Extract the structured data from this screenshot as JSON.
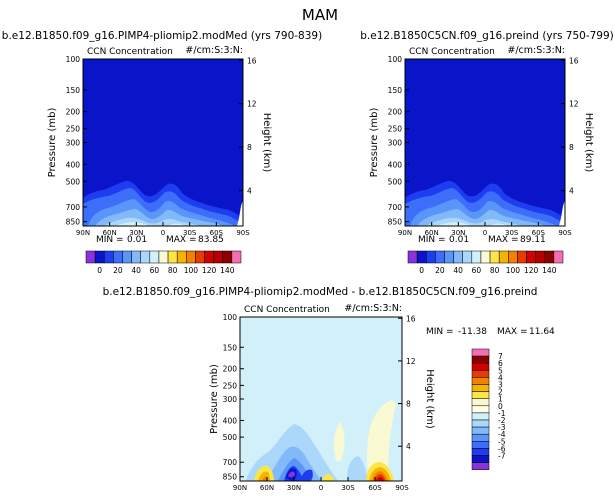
{
  "figure": {
    "title": "MAM"
  },
  "palette": {
    "background": "#ffffff",
    "frame": "#000000",
    "deep_blue": "#0a14c8"
  },
  "chart_data": [
    {
      "type": "heatmap",
      "panel": "left",
      "title": "b.e12.B1850.f09_g16.PIMP4-pliomip2.modMed (yrs 790-839)",
      "subtitle_left": "CCN Concentration",
      "subtitle_right": "#/cm:S:3:N:",
      "ylabel": "Pressure (mb)",
      "ylabel_right": "Height (km)",
      "x_ticks": [
        "90N",
        "60N",
        "30N",
        "0",
        "30S",
        "60S",
        "90S"
      ],
      "y_ticks": [
        "100",
        "150",
        "200",
        "250",
        "300",
        "400",
        "500",
        "700",
        "850"
      ],
      "y2_ticks": [
        "16",
        "12",
        "8",
        "4"
      ],
      "min_label": "MIN =",
      "min_value": "0.01",
      "max_label": "MAX =",
      "max_value": "83.85"
    },
    {
      "type": "heatmap",
      "panel": "right",
      "title": "b.e12.B1850C5CN.f09_g16.preind (yrs 750-799)",
      "subtitle_left": "CCN Concentration",
      "subtitle_right": "#/cm:S:3:N:",
      "ylabel": "Pressure (mb)",
      "ylabel_right": "Height (km)",
      "x_ticks": [
        "90N",
        "60N",
        "30N",
        "0",
        "30S",
        "60S",
        "90S"
      ],
      "y_ticks": [
        "100",
        "150",
        "200",
        "250",
        "300",
        "400",
        "500",
        "700",
        "850"
      ],
      "y2_ticks": [
        "16",
        "12",
        "8",
        "4"
      ],
      "min_label": "MIN =",
      "min_value": "0.01",
      "max_label": "MAX =",
      "max_value": "89.11"
    },
    {
      "type": "heatmap",
      "panel": "difference",
      "title": "b.e12.B1850.f09_g16.PIMP4-pliomip2.modMed - b.e12.B1850C5CN.f09_g16.preind",
      "subtitle_left": "CCN Concentration",
      "subtitle_right": "#/cm:S:3:N:",
      "ylabel": "Pressure (mb)",
      "ylabel_right": "Height (km)",
      "x_ticks": [
        "90N",
        "60N",
        "30N",
        "0",
        "30S",
        "60S",
        "90S"
      ],
      "y_ticks": [
        "100",
        "150",
        "200",
        "250",
        "300",
        "400",
        "500",
        "700",
        "850"
      ],
      "y2_ticks": [
        "16",
        "12",
        "8",
        "4"
      ],
      "min_label": "MIN =",
      "min_value": "-11.38",
      "max_label": "MAX =",
      "max_value": "11.64"
    }
  ],
  "colorbar_abs": {
    "labels": [
      "0",
      "20",
      "40",
      "60",
      "80",
      "100",
      "120",
      "140"
    ],
    "colors": [
      "#8c32dc",
      "#0a14c8",
      "#1e3cf0",
      "#3c6efa",
      "#5a96fa",
      "#82b9fa",
      "#aad7fa",
      "#d2f0fa",
      "#fafad2",
      "#fae646",
      "#f5b400",
      "#f08200",
      "#e63c00",
      "#d20000",
      "#b40000",
      "#8c0000",
      "#f56eb4"
    ]
  },
  "colorbar_diff": {
    "labels": [
      "7",
      "6",
      "5",
      "4",
      "3",
      "2",
      "1",
      "0",
      "-1",
      "-2",
      "-3",
      "-4",
      "-5",
      "-6",
      "-7"
    ],
    "colors": [
      "#f56eb4",
      "#8c0000",
      "#d20000",
      "#e63c00",
      "#f08200",
      "#f5b400",
      "#fae646",
      "#fafad2",
      "#ffffe6",
      "#d2f0fa",
      "#aad7fa",
      "#82b9fa",
      "#5a96fa",
      "#3c6efa",
      "#1e3cf0",
      "#0a14c8",
      "#8c32dc"
    ]
  }
}
